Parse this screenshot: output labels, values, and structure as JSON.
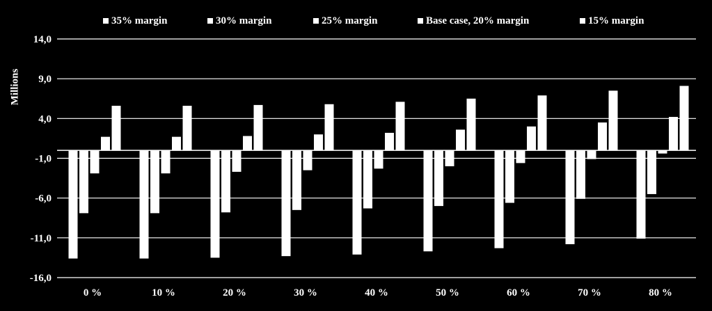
{
  "chart_data": {
    "type": "bar",
    "title": "",
    "xlabel": "",
    "ylabel": "Millions",
    "ylim": [
      -16,
      14
    ],
    "y_ticks": [
      "-16,0",
      "-11,0",
      "-6,0",
      "-1,0",
      "4,0",
      "9,0",
      "14,0"
    ],
    "y_tick_values": [
      -16,
      -11,
      -6,
      -1,
      4,
      9,
      14
    ],
    "grid": true,
    "legend_position": "top",
    "categories": [
      "0 %",
      "10 %",
      "20 %",
      "30 %",
      "40 %",
      "50 %",
      "60 %",
      "70 %",
      "80 %"
    ],
    "series": [
      {
        "name": "35% margin",
        "values": [
          -13.6,
          -13.6,
          -13.5,
          -13.3,
          -13.1,
          -12.7,
          -12.3,
          -11.8,
          -11.1
        ]
      },
      {
        "name": "30% margin",
        "values": [
          -7.9,
          -7.9,
          -7.8,
          -7.5,
          -7.3,
          -7.0,
          -6.6,
          -6.1,
          -5.5
        ]
      },
      {
        "name": "25% margin",
        "values": [
          -2.9,
          -2.9,
          -2.7,
          -2.5,
          -2.3,
          -2.0,
          -1.6,
          -1.1,
          -0.4
        ]
      },
      {
        "name": "Base case, 20% margin",
        "values": [
          1.7,
          1.7,
          1.8,
          2.0,
          2.2,
          2.6,
          3.0,
          3.5,
          4.2
        ]
      },
      {
        "name": "15% margin",
        "values": [
          5.6,
          5.6,
          5.7,
          5.8,
          6.1,
          6.5,
          6.9,
          7.5,
          8.1
        ]
      }
    ]
  },
  "colors": {
    "background": "#000000",
    "bars": "#ffffff",
    "grid": "#ffffff",
    "text": "#ffffff"
  }
}
